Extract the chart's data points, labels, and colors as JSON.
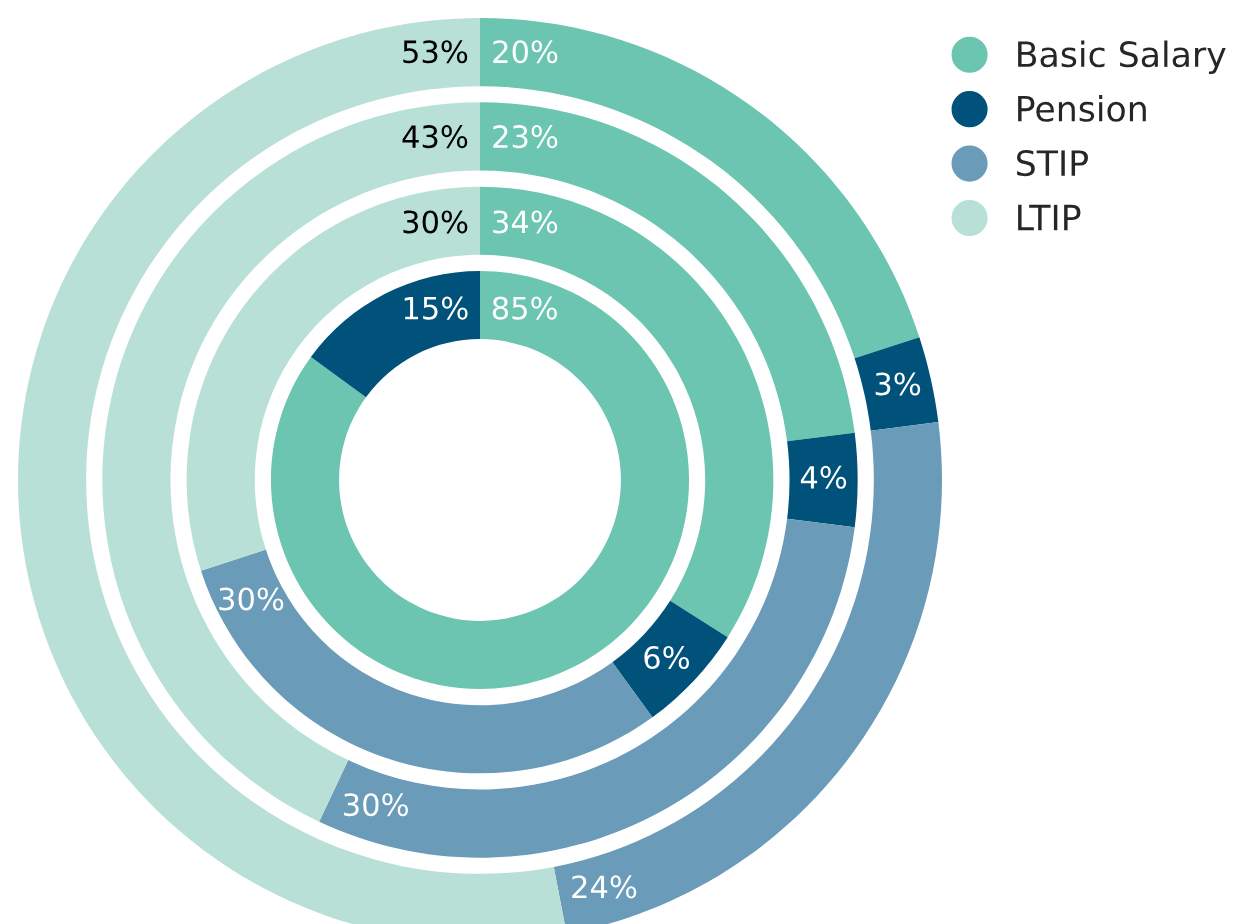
{
  "chart_data": {
    "type": "donut",
    "categories": [
      "Basic Salary",
      "Pension",
      "STIP",
      "LTIP"
    ],
    "colors": [
      "#6cc5b0",
      "#00527a",
      "#6a9bb8",
      "#b8e0d6"
    ],
    "series": [
      {
        "values": [
          85,
          15,
          null,
          null
        ],
        "value_labels": [
          "85%",
          "15%",
          null,
          null
        ]
      },
      {
        "values": [
          34,
          6,
          30,
          30
        ],
        "value_labels": [
          "34%",
          "6%",
          "30%",
          "30%"
        ]
      },
      {
        "values": [
          23,
          4,
          30,
          43
        ],
        "value_labels": [
          "23%",
          "4%",
          "30%",
          "43%"
        ]
      },
      {
        "values": [
          20,
          3,
          24,
          53
        ],
        "value_labels": [
          "20%",
          "3%",
          "24%",
          "53%"
        ]
      }
    ],
    "legend": "top right"
  }
}
